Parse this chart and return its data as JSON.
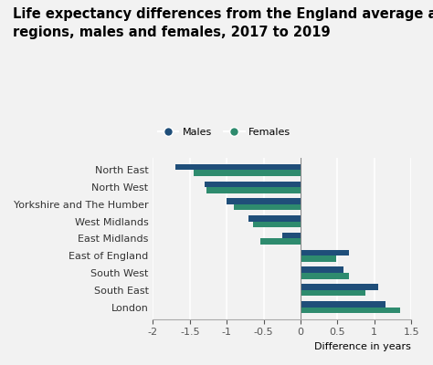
{
  "title_line1": "Life expectancy differences from the England average across England’s",
  "title_line2": "regions, males and females, 2017 to 2019",
  "regions": [
    "North East",
    "North West",
    "Yorkshire and The Humber",
    "West Midlands",
    "East Midlands",
    "East of England",
    "South West",
    "South East",
    "London"
  ],
  "males": [
    -1.7,
    -1.3,
    -1.0,
    -0.7,
    -0.25,
    0.65,
    0.58,
    1.05,
    1.15
  ],
  "females": [
    -1.45,
    -1.28,
    -0.9,
    -0.65,
    -0.55,
    0.48,
    0.65,
    0.88,
    1.35
  ],
  "male_color": "#1f4e79",
  "female_color": "#2e8b6e",
  "xlim": [
    -2,
    1.5
  ],
  "xticks": [
    -2,
    -1.5,
    -1,
    -0.5,
    0,
    0.5,
    1,
    1.5
  ],
  "xtick_labels": [
    "-2",
    "-1.5",
    "-1",
    "-0.5",
    "0",
    "0.5",
    "1",
    "1.5"
  ],
  "xlabel": "Difference in years",
  "background_color": "#f2f2f2",
  "bar_height": 0.35,
  "title_fontsize": 10.5,
  "tick_fontsize": 8,
  "legend_fontsize": 8
}
